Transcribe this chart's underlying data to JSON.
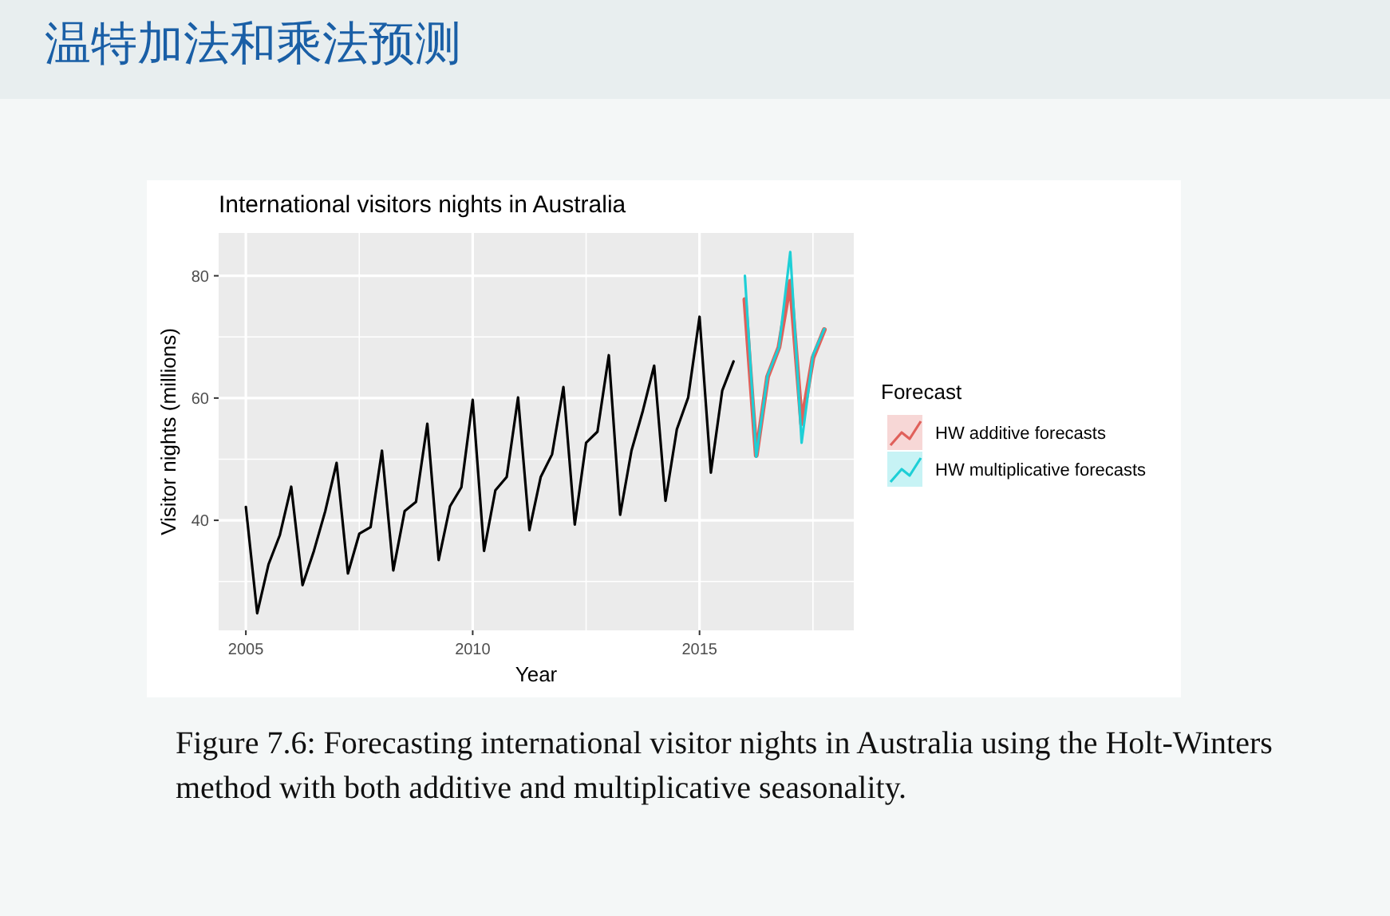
{
  "chart_data": {
    "type": "line",
    "title": "温特加法和乘法预测",
    "subtitle": "International visitors nights in Australia",
    "xlabel": "Year",
    "ylabel": "Visitor nights (millions)",
    "legend_title": "Forecast",
    "legend": "right",
    "grid": true,
    "annotations": [
      "Figure 7.6: Forecasting international visitor nights in Australia using the Holt-Winters method with both additive and multiplicative seasonality."
    ],
    "xlim": [
      2004.4,
      2018.4
    ],
    "xticks": [
      2005,
      {
        "value": 2007.5,
        "label": null
      },
      2010,
      {
        "value": 2012.5,
        "label": null
      },
      2015,
      {
        "value": 2017.5,
        "label": null
      }
    ],
    "ylim": [
      22,
      87
    ],
    "yticks": [
      {
        "value": 30,
        "label": null
      },
      40,
      {
        "value": 50,
        "label": null
      },
      60,
      {
        "value": 70,
        "label": null
      },
      80
    ],
    "series": [
      {
        "color": "#000000",
        "x": [
          2005,
          2005.25,
          2005.5,
          2005.75,
          2006,
          2006.25,
          2006.5,
          2006.75,
          2007,
          2007.25,
          2007.5,
          2007.75,
          2008,
          2008.25,
          2008.5,
          2008.75,
          2009,
          2009.25,
          2009.5,
          2009.75,
          2010,
          2010.25,
          2010.5,
          2010.75,
          2011,
          2011.25,
          2011.5,
          2011.75,
          2012,
          2012.25,
          2012.5,
          2012.75,
          2013,
          2013.25,
          2013.5,
          2013.75,
          2014,
          2014.25,
          2014.5,
          2014.75,
          2015,
          2015.25,
          2015.5,
          2015.75
        ],
        "values": [
          42.2,
          24.8,
          32.8,
          37.6,
          45.5,
          29.4,
          35.0,
          41.5,
          49.4,
          31.3,
          37.8,
          38.9,
          51.4,
          31.8,
          41.5,
          43.0,
          55.8,
          33.5,
          42.3,
          45.4,
          59.7,
          35.0,
          44.9,
          47.1,
          60.1,
          38.4,
          47.1,
          50.8,
          61.8,
          39.3,
          52.7,
          54.5,
          67.0,
          40.9,
          51.4,
          57.9,
          65.3,
          43.2,
          54.9,
          60.1,
          73.3,
          47.8,
          61.2,
          66.0
        ]
      },
      {
        "name": "HW additive forecasts",
        "color": "#e0605a",
        "x": [
          2016,
          2016.25,
          2016.5,
          2016.75,
          2017,
          2017.25,
          2017.5,
          2017.75
        ],
        "values": [
          76.1,
          50.6,
          63.5,
          68.3,
          79.1,
          55.8,
          66.6,
          71.2
        ]
      },
      {
        "name": "HW multiplicative forecasts",
        "color": "#1ecfd6",
        "x": [
          2016,
          2016.25,
          2016.5,
          2016.75,
          2017,
          2017.25,
          2017.5,
          2017.75
        ],
        "values": [
          80.0,
          50.4,
          63.7,
          68.3,
          83.9,
          52.7,
          67.0,
          71.3
        ]
      }
    ]
  }
}
